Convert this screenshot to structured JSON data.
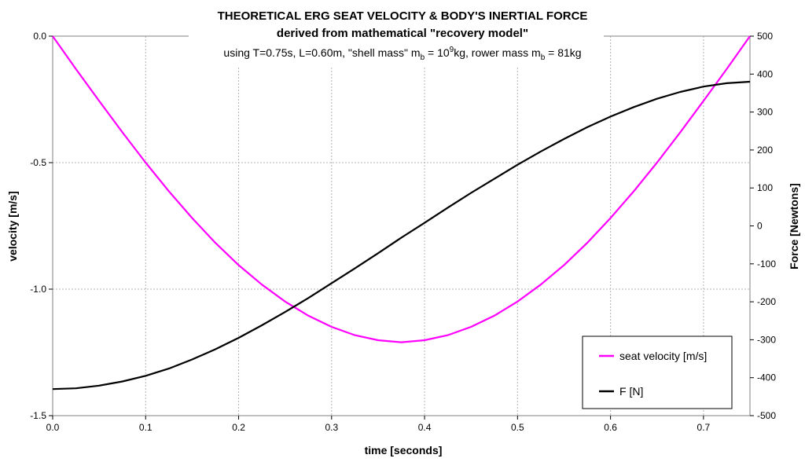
{
  "chart_data": {
    "type": "line",
    "title": "THEORETICAL ERG SEAT VELOCITY & BODY'S INERTIAL FORCE",
    "subtitle": "derived from mathematical \"recovery model\"",
    "params": {
      "prefix": "using T=0.75s, L=0.60m, \"shell mass\" m",
      "sub1": "b",
      "mid1": " = 10",
      "sup1": "9",
      "mid2": "kg, rower mass m",
      "sub2": "b",
      "suffix": " = 81kg"
    },
    "xlabel": "time [seconds]",
    "ylabel_left": "velocity [m/s]",
    "ylabel_right": "Force [Newtons]",
    "xlim": [
      0,
      0.75
    ],
    "ylim_left": [
      -1.5,
      0
    ],
    "ylim_right": [
      -500,
      500
    ],
    "x_ticks": [
      "0.0",
      "0.1",
      "0.2",
      "0.3",
      "0.4",
      "0.5",
      "0.6",
      "0.7"
    ],
    "x_tick_values": [
      0,
      0.1,
      0.2,
      0.3,
      0.4,
      0.5,
      0.6,
      0.7
    ],
    "y_left_ticks": [
      "0.0",
      "-0.5",
      "-1.0",
      "-1.5"
    ],
    "y_left_tick_values": [
      0,
      -0.5,
      -1.0,
      -1.5
    ],
    "y_right_ticks": [
      "500",
      "400",
      "300",
      "200",
      "100",
      "0",
      "-100",
      "-200",
      "-300",
      "-400",
      "-500"
    ],
    "y_right_tick_values": [
      500,
      400,
      300,
      200,
      100,
      0,
      -100,
      -200,
      -300,
      -400,
      -500
    ],
    "grid": true,
    "legend_position": "bottom-right",
    "series": [
      {
        "name": "seat velocity [m/s]",
        "axis": "left",
        "color": "#ff00ff",
        "x": [
          0,
          0.025,
          0.05,
          0.075,
          0.1,
          0.125,
          0.15,
          0.175,
          0.2,
          0.225,
          0.25,
          0.275,
          0.3,
          0.325,
          0.35,
          0.375,
          0.4,
          0.425,
          0.45,
          0.475,
          0.5,
          0.525,
          0.55,
          0.575,
          0.6,
          0.625,
          0.65,
          0.675,
          0.7,
          0.725,
          0.75
        ],
        "values": [
          0,
          -0.13,
          -0.256,
          -0.38,
          -0.5,
          -0.613,
          -0.719,
          -0.817,
          -0.905,
          -0.982,
          -1.049,
          -1.105,
          -1.149,
          -1.182,
          -1.202,
          -1.21,
          -1.202,
          -1.182,
          -1.149,
          -1.105,
          -1.049,
          -0.982,
          -0.905,
          -0.817,
          -0.719,
          -0.613,
          -0.5,
          -0.38,
          -0.256,
          -0.13,
          0
        ]
      },
      {
        "name": "F [N]",
        "axis": "right",
        "color": "#000000",
        "x": [
          0,
          0.025,
          0.05,
          0.075,
          0.1,
          0.125,
          0.15,
          0.175,
          0.2,
          0.225,
          0.25,
          0.275,
          0.3,
          0.325,
          0.35,
          0.375,
          0.4,
          0.425,
          0.45,
          0.475,
          0.5,
          0.525,
          0.55,
          0.575,
          0.6,
          0.625,
          0.65,
          0.675,
          0.7,
          0.725,
          0.75
        ],
        "values": [
          -430,
          -428,
          -421,
          -410,
          -395,
          -376,
          -352,
          -325,
          -295,
          -262,
          -227,
          -190,
          -151,
          -112,
          -72,
          -31,
          8,
          48,
          87,
          124,
          161,
          196,
          229,
          260,
          288,
          313,
          335,
          353,
          367,
          376,
          380
        ]
      }
    ]
  }
}
